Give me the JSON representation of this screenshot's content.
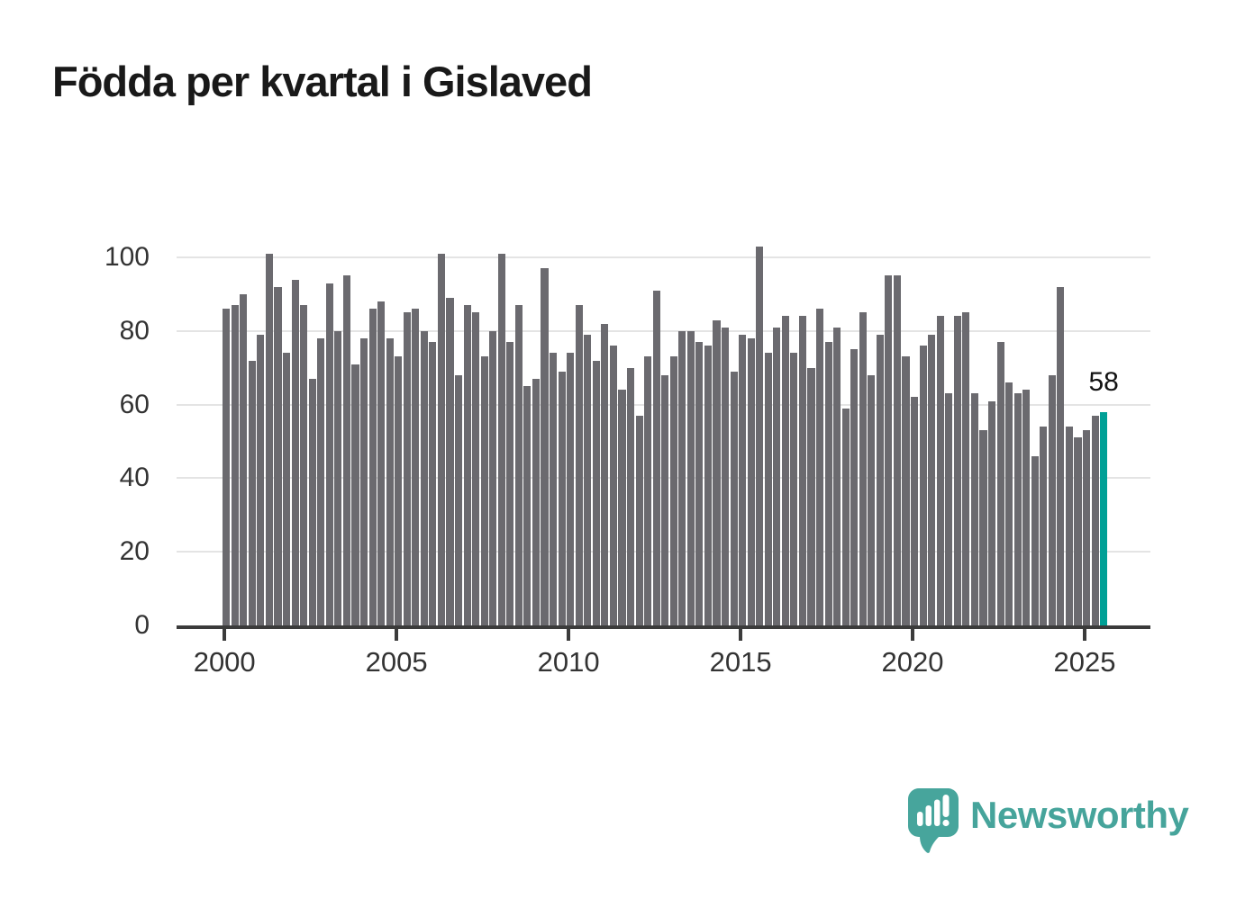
{
  "title": "Födda per kvartal i Gislaved",
  "annotation": {
    "last_value_label": "58"
  },
  "branding": {
    "name": "Newsworthy",
    "logo_icon": "speech-bubble-bar-chart-icon",
    "brand_color": "#46a49b"
  },
  "colors": {
    "bar": "#6b6a6f",
    "highlight_bar": "#00a096",
    "axis": "#3b3b3b",
    "gridline": "#e4e4e4",
    "tick_label": "#333333",
    "title": "#191919",
    "background": "#ffffff"
  },
  "chart_data": {
    "type": "bar",
    "title": "Födda per kvartal i Gislaved",
    "xlabel": "",
    "ylabel": "",
    "ylim": [
      0,
      105
    ],
    "y_ticks": [
      0,
      20,
      40,
      60,
      80,
      100
    ],
    "grid": "horizontal",
    "legend": "none",
    "x_ticks": [
      {
        "label": "2000",
        "quarter_index": 0
      },
      {
        "label": "2005",
        "quarter_index": 20
      },
      {
        "label": "2010",
        "quarter_index": 40
      },
      {
        "label": "2015",
        "quarter_index": 60
      },
      {
        "label": "2020",
        "quarter_index": 80
      },
      {
        "label": "2025",
        "quarter_index": 100
      }
    ],
    "categories": [
      "2000Q1",
      "2000Q2",
      "2000Q3",
      "2000Q4",
      "2001Q1",
      "2001Q2",
      "2001Q3",
      "2001Q4",
      "2002Q1",
      "2002Q2",
      "2002Q3",
      "2002Q4",
      "2003Q1",
      "2003Q2",
      "2003Q3",
      "2003Q4",
      "2004Q1",
      "2004Q2",
      "2004Q3",
      "2004Q4",
      "2005Q1",
      "2005Q2",
      "2005Q3",
      "2005Q4",
      "2006Q1",
      "2006Q2",
      "2006Q3",
      "2006Q4",
      "2007Q1",
      "2007Q2",
      "2007Q3",
      "2007Q4",
      "2008Q1",
      "2008Q2",
      "2008Q3",
      "2008Q4",
      "2009Q1",
      "2009Q2",
      "2009Q3",
      "2009Q4",
      "2010Q1",
      "2010Q2",
      "2010Q3",
      "2010Q4",
      "2011Q1",
      "2011Q2",
      "2011Q3",
      "2011Q4",
      "2012Q1",
      "2012Q2",
      "2012Q3",
      "2012Q4",
      "2013Q1",
      "2013Q2",
      "2013Q3",
      "2013Q4",
      "2014Q1",
      "2014Q2",
      "2014Q3",
      "2014Q4",
      "2015Q1",
      "2015Q2",
      "2015Q3",
      "2015Q4",
      "2016Q1",
      "2016Q2",
      "2016Q3",
      "2016Q4",
      "2017Q1",
      "2017Q2",
      "2017Q3",
      "2017Q4",
      "2018Q1",
      "2018Q2",
      "2018Q3",
      "2018Q4",
      "2019Q1",
      "2019Q2",
      "2019Q3",
      "2019Q4",
      "2020Q1",
      "2020Q2",
      "2020Q3",
      "2020Q4",
      "2021Q1",
      "2021Q2",
      "2021Q3",
      "2021Q4",
      "2022Q1",
      "2022Q2",
      "2022Q3",
      "2022Q4",
      "2023Q1",
      "2023Q2",
      "2023Q3",
      "2023Q4",
      "2024Q1",
      "2024Q2",
      "2024Q3",
      "2024Q4",
      "2025Q1",
      "2025Q2",
      "2025Q3"
    ],
    "values": [
      86,
      87,
      90,
      72,
      79,
      101,
      92,
      74,
      94,
      87,
      67,
      78,
      93,
      80,
      95,
      71,
      78,
      86,
      88,
      78,
      73,
      85,
      86,
      80,
      77,
      101,
      89,
      68,
      87,
      85,
      73,
      80,
      101,
      77,
      87,
      65,
      67,
      97,
      74,
      69,
      74,
      87,
      79,
      72,
      82,
      76,
      64,
      70,
      57,
      73,
      91,
      68,
      73,
      80,
      80,
      77,
      76,
      83,
      81,
      69,
      79,
      78,
      103,
      74,
      81,
      84,
      74,
      84,
      70,
      86,
      77,
      81,
      59,
      75,
      85,
      68,
      79,
      95,
      95,
      73,
      62,
      76,
      79,
      84,
      63,
      84,
      85,
      63,
      53,
      61,
      77,
      66,
      63,
      64,
      46,
      54,
      68,
      92,
      54,
      51,
      53,
      57,
      58
    ],
    "highlight": {
      "index": 102,
      "category": "2025Q3",
      "value": 58,
      "label": "58",
      "color": "#00a096"
    }
  }
}
